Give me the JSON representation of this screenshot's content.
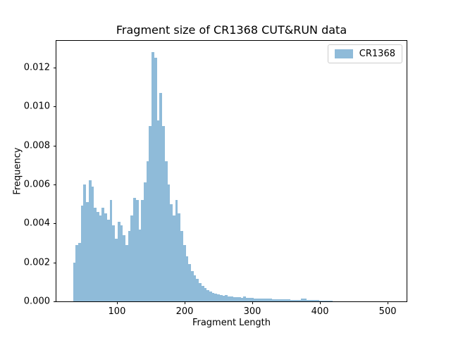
{
  "figure": {
    "title": "Fragment size of CR1368 CUT&RUN data",
    "xlabel": "Fragment Length",
    "ylabel": "Frequency",
    "legend": {
      "label": "CR1368"
    }
  },
  "colors": {
    "bar_fill": "#8fbbd9",
    "axis": "#000000",
    "legend_border": "#cccccc"
  },
  "chart_data": {
    "type": "bar",
    "subtype": "histogram",
    "title": "Fragment size of CR1368 CUT&RUN data",
    "xlabel": "Fragment Length",
    "ylabel": "Frequency",
    "series_name": "CR1368",
    "grid": false,
    "legend_position": "upper right",
    "xlim": [
      10.5,
      528
    ],
    "ylim": [
      0,
      0.01337
    ],
    "x_ticks": [
      100,
      200,
      300,
      400,
      500
    ],
    "y_ticks": [
      {
        "value": 0.0,
        "label": "0.000"
      },
      {
        "value": 0.002,
        "label": "0.002"
      },
      {
        "value": 0.004,
        "label": "0.004"
      },
      {
        "value": 0.006,
        "label": "0.006"
      },
      {
        "value": 0.008,
        "label": "0.008"
      },
      {
        "value": 0.01,
        "label": "0.010"
      },
      {
        "value": 0.012,
        "label": "0.012"
      }
    ],
    "bins": {
      "start": 35,
      "width": 3.875,
      "frequencies": [
        0.002,
        0.0029,
        0.003,
        0.0049,
        0.006,
        0.0051,
        0.0062,
        0.0059,
        0.0048,
        0.0046,
        0.0044,
        0.0048,
        0.0045,
        0.0042,
        0.0052,
        0.0039,
        0.0032,
        0.0041,
        0.0039,
        0.0034,
        0.0029,
        0.0036,
        0.0044,
        0.0053,
        0.0052,
        0.0037,
        0.0052,
        0.0061,
        0.0072,
        0.009,
        0.0128,
        0.0125,
        0.0093,
        0.0107,
        0.009,
        0.0072,
        0.006,
        0.005,
        0.0044,
        0.0052,
        0.0045,
        0.0036,
        0.0029,
        0.0023,
        0.0019,
        0.00155,
        0.00135,
        0.00115,
        0.00095,
        0.0008,
        0.00068,
        0.00058,
        0.0005,
        0.00045,
        0.0004,
        0.00037,
        0.00033,
        0.0003,
        0.00032,
        0.00026,
        0.00024,
        0.00022,
        0.00021,
        0.0002,
        0.00019,
        0.00025,
        0.00018,
        0.00017,
        0.00017,
        0.00016,
        0.00015,
        0.00015,
        0.00014,
        0.00014,
        0.00013,
        0.00013,
        0.00012,
        0.00012,
        0.00011,
        0.00011,
        0.0001,
        0.0001,
        0.0001,
        9e-05,
        9e-05,
        9e-05,
        8e-05,
        0.00015,
        0.00016,
        8e-05,
        7e-05,
        7e-05,
        6e-05,
        6e-05,
        5e-05,
        5e-05,
        4e-05,
        4e-05,
        3e-05
      ]
    }
  }
}
